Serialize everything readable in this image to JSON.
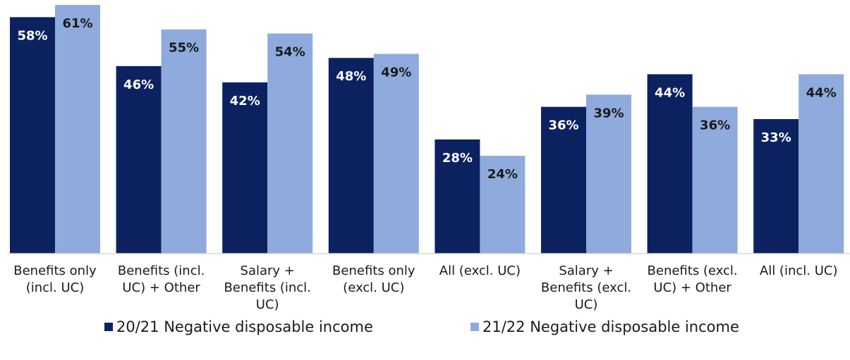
{
  "chart_data": {
    "type": "bar",
    "categories": [
      "Benefits only (incl. UC)",
      "Benefits (incl. UC) + Other",
      "Salary + Benefits (incl. UC)",
      "Benefits only (excl. UC)",
      "All (excl. UC)",
      "Salary + Benefits (excl. UC)",
      "Benefits (excl. UC) + Other",
      "All (incl. UC)"
    ],
    "series": [
      {
        "name": "20/21 Negative disposable income",
        "color": "#0c2260",
        "label_color": "#ffffff",
        "values": [
          58,
          46,
          42,
          48,
          28,
          36,
          44,
          33
        ],
        "value_labels": [
          "58%",
          "46%",
          "42%",
          "48%",
          "28%",
          "36%",
          "44%",
          "33%"
        ]
      },
      {
        "name": "21/22 Negative disposable income",
        "color": "#8faadc",
        "label_color": "#1a1a1a",
        "values": [
          61,
          55,
          54,
          49,
          24,
          39,
          36,
          44
        ],
        "value_labels": [
          "61%",
          "55%",
          "54%",
          "49%",
          "24%",
          "39%",
          "36%",
          "44%"
        ]
      }
    ],
    "legend": "bottom"
  }
}
